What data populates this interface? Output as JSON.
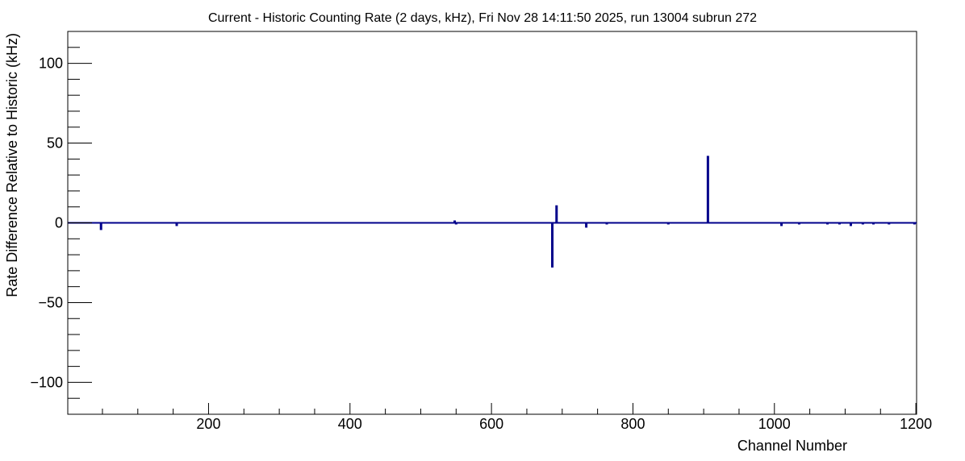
{
  "chart_data": {
    "type": "bar",
    "title": "Current - Historic Counting Rate (2 days, kHz), Fri Nov 28 14:11:50 2025, run 13004 subrun 272",
    "xlabel": "Channel Number",
    "ylabel": "Rate Difference Relative to Historic (kHz)",
    "xlim": [
      1,
      1201
    ],
    "ylim": [
      -120,
      120
    ],
    "x_ticks": [
      200,
      400,
      600,
      800,
      1000,
      1200
    ],
    "x_tick_labels": [
      "200",
      "400",
      "600",
      "800",
      "1000",
      "1200"
    ],
    "y_ticks": [
      -100,
      -50,
      0,
      50,
      100
    ],
    "y_tick_labels": [
      "−100",
      "−50",
      "0",
      "50",
      "100"
    ],
    "grid": false,
    "colors": {
      "series": "#00008b",
      "axis": "#000000"
    },
    "series": [
      {
        "x": [
          40,
          48,
          155,
          172,
          265,
          435,
          443,
          548,
          550,
          632,
          686,
          692,
          734,
          763,
          780,
          850,
          906,
          1010,
          1035,
          1075,
          1092,
          1108,
          1125,
          1140,
          1162,
          1198
        ],
        "values": [
          0.5,
          -4.5,
          -2,
          0.5,
          0.5,
          0.5,
          0.5,
          1.5,
          -1,
          0.5,
          -28,
          11,
          -3,
          -1,
          0.5,
          -1,
          42,
          -2,
          -1,
          -1,
          -1,
          -2,
          -1,
          -1,
          -1,
          -1
        ]
      }
    ]
  }
}
